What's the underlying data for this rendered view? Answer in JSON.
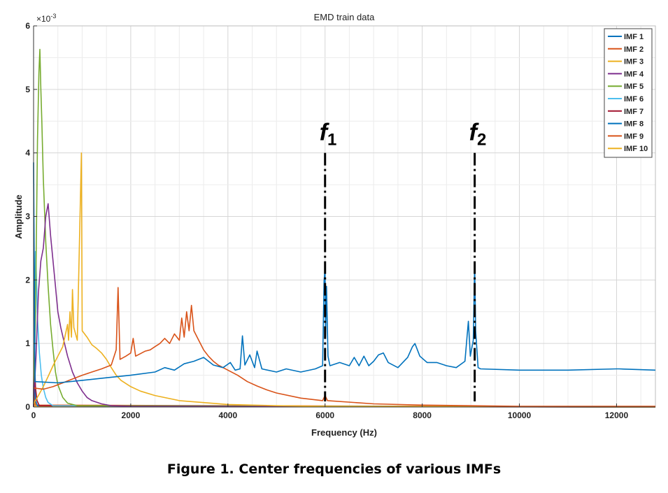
{
  "chart_data": {
    "type": "line",
    "title": "EMD train data",
    "xlabel": "Frequency (Hz)",
    "ylabel": "Amplitude",
    "y_multiplier": "×10",
    "y_exponent": "-3",
    "xlim": [
      0,
      12800
    ],
    "ylim": [
      0,
      6
    ],
    "x_ticks": [
      "0",
      "2000",
      "4000",
      "6000",
      "8000",
      "10000",
      "12000"
    ],
    "x_tick_values": [
      0,
      2000,
      4000,
      6000,
      8000,
      10000,
      12000
    ],
    "y_ticks": [
      "0",
      "1",
      "2",
      "3",
      "4",
      "5",
      "6"
    ],
    "y_tick_values": [
      0,
      1,
      2,
      3,
      4,
      5,
      6
    ],
    "grid": "on",
    "legend_position": "top-right",
    "series": [
      {
        "name": "IMF 1",
        "color": "#0072BD",
        "points": [
          [
            0,
            3.85
          ],
          [
            30,
            0.4
          ],
          [
            500,
            0.38
          ],
          [
            1000,
            0.42
          ],
          [
            1500,
            0.46
          ],
          [
            2000,
            0.5
          ],
          [
            2500,
            0.55
          ],
          [
            2700,
            0.62
          ],
          [
            2900,
            0.58
          ],
          [
            3100,
            0.68
          ],
          [
            3300,
            0.72
          ],
          [
            3500,
            0.78
          ],
          [
            3700,
            0.66
          ],
          [
            3900,
            0.62
          ],
          [
            4050,
            0.7
          ],
          [
            4150,
            0.58
          ],
          [
            4250,
            0.6
          ],
          [
            4300,
            1.12
          ],
          [
            4350,
            0.66
          ],
          [
            4450,
            0.82
          ],
          [
            4550,
            0.62
          ],
          [
            4600,
            0.88
          ],
          [
            4700,
            0.6
          ],
          [
            5000,
            0.55
          ],
          [
            5200,
            0.6
          ],
          [
            5500,
            0.55
          ],
          [
            5800,
            0.6
          ],
          [
            5950,
            0.65
          ],
          [
            5980,
            1.98
          ],
          [
            6000,
            2.18
          ],
          [
            6010,
            1.1
          ],
          [
            6030,
            1.9
          ],
          [
            6060,
            0.8
          ],
          [
            6100,
            0.65
          ],
          [
            6300,
            0.7
          ],
          [
            6500,
            0.65
          ],
          [
            6600,
            0.78
          ],
          [
            6700,
            0.65
          ],
          [
            6800,
            0.8
          ],
          [
            6900,
            0.65
          ],
          [
            7000,
            0.72
          ],
          [
            7100,
            0.82
          ],
          [
            7200,
            0.85
          ],
          [
            7300,
            0.7
          ],
          [
            7500,
            0.62
          ],
          [
            7700,
            0.78
          ],
          [
            7800,
            0.95
          ],
          [
            7850,
            1.0
          ],
          [
            7950,
            0.8
          ],
          [
            8100,
            0.7
          ],
          [
            8300,
            0.7
          ],
          [
            8500,
            0.65
          ],
          [
            8700,
            0.62
          ],
          [
            8880,
            0.72
          ],
          [
            8950,
            1.35
          ],
          [
            8990,
            0.8
          ],
          [
            9050,
            1.05
          ],
          [
            9080,
            2.25
          ],
          [
            9100,
            1.2
          ],
          [
            9150,
            0.62
          ],
          [
            9200,
            0.6
          ],
          [
            10000,
            0.58
          ],
          [
            11000,
            0.58
          ],
          [
            12000,
            0.6
          ],
          [
            12050,
            0.6
          ],
          [
            12800,
            0.58
          ]
        ]
      },
      {
        "name": "IMF 2",
        "color": "#D95319",
        "points": [
          [
            0,
            0.3
          ],
          [
            200,
            0.28
          ],
          [
            400,
            0.32
          ],
          [
            600,
            0.38
          ],
          [
            800,
            0.44
          ],
          [
            1000,
            0.5
          ],
          [
            1200,
            0.55
          ],
          [
            1400,
            0.6
          ],
          [
            1600,
            0.66
          ],
          [
            1700,
            0.9
          ],
          [
            1740,
            1.88
          ],
          [
            1780,
            0.75
          ],
          [
            1900,
            0.8
          ],
          [
            2000,
            0.85
          ],
          [
            2050,
            1.08
          ],
          [
            2100,
            0.8
          ],
          [
            2300,
            0.88
          ],
          [
            2400,
            0.9
          ],
          [
            2500,
            0.95
          ],
          [
            2600,
            1.0
          ],
          [
            2700,
            1.08
          ],
          [
            2800,
            1.0
          ],
          [
            2900,
            1.15
          ],
          [
            3000,
            1.05
          ],
          [
            3050,
            1.4
          ],
          [
            3100,
            1.1
          ],
          [
            3150,
            1.5
          ],
          [
            3200,
            1.2
          ],
          [
            3250,
            1.6
          ],
          [
            3300,
            1.2
          ],
          [
            3400,
            1.05
          ],
          [
            3500,
            0.9
          ],
          [
            3600,
            0.8
          ],
          [
            3700,
            0.72
          ],
          [
            3800,
            0.66
          ],
          [
            4000,
            0.58
          ],
          [
            4200,
            0.5
          ],
          [
            4400,
            0.4
          ],
          [
            4600,
            0.33
          ],
          [
            4800,
            0.27
          ],
          [
            5000,
            0.22
          ],
          [
            5500,
            0.14
          ],
          [
            5950,
            0.1
          ],
          [
            6000,
            0.18
          ],
          [
            6050,
            0.1
          ],
          [
            7000,
            0.05
          ],
          [
            8000,
            0.03
          ],
          [
            9000,
            0.02
          ],
          [
            10000,
            0.01
          ],
          [
            12800,
            0.01
          ]
        ]
      },
      {
        "name": "IMF 3",
        "color": "#EDB120",
        "points": [
          [
            0,
            0.05
          ],
          [
            100,
            0.18
          ],
          [
            200,
            0.32
          ],
          [
            300,
            0.48
          ],
          [
            400,
            0.65
          ],
          [
            500,
            0.8
          ],
          [
            600,
            0.95
          ],
          [
            700,
            1.3
          ],
          [
            720,
            1.05
          ],
          [
            750,
            1.5
          ],
          [
            780,
            1.1
          ],
          [
            800,
            1.85
          ],
          [
            830,
            1.25
          ],
          [
            900,
            1.05
          ],
          [
            985,
            4.0
          ],
          [
            1000,
            1.2
          ],
          [
            1100,
            1.1
          ],
          [
            1200,
            0.98
          ],
          [
            1300,
            0.92
          ],
          [
            1400,
            0.85
          ],
          [
            1500,
            0.75
          ],
          [
            1600,
            0.62
          ],
          [
            1700,
            0.5
          ],
          [
            1800,
            0.42
          ],
          [
            2000,
            0.32
          ],
          [
            2200,
            0.25
          ],
          [
            2500,
            0.18
          ],
          [
            3000,
            0.1
          ],
          [
            4000,
            0.04
          ],
          [
            5000,
            0.02
          ],
          [
            6000,
            0.01
          ],
          [
            12800,
            0.0
          ]
        ]
      },
      {
        "name": "IMF 4",
        "color": "#7E2F8E",
        "points": [
          [
            0,
            0.05
          ],
          [
            50,
            0.8
          ],
          [
            100,
            1.8
          ],
          [
            150,
            2.3
          ],
          [
            200,
            2.5
          ],
          [
            250,
            3.0
          ],
          [
            300,
            3.2
          ],
          [
            350,
            2.7
          ],
          [
            400,
            2.3
          ],
          [
            450,
            1.9
          ],
          [
            500,
            1.5
          ],
          [
            560,
            1.25
          ],
          [
            620,
            1.05
          ],
          [
            700,
            0.8
          ],
          [
            800,
            0.55
          ],
          [
            900,
            0.38
          ],
          [
            1000,
            0.25
          ],
          [
            1100,
            0.15
          ],
          [
            1200,
            0.1
          ],
          [
            1400,
            0.05
          ],
          [
            1600,
            0.02
          ],
          [
            2000,
            0.01
          ],
          [
            12800,
            0.0
          ]
        ]
      },
      {
        "name": "IMF 5",
        "color": "#77AC30",
        "points": [
          [
            0,
            0.05
          ],
          [
            40,
            1.5
          ],
          [
            80,
            4.2
          ],
          [
            110,
            5.25
          ],
          [
            130,
            5.63
          ],
          [
            150,
            5.0
          ],
          [
            170,
            4.5
          ],
          [
            200,
            3.6
          ],
          [
            250,
            2.6
          ],
          [
            300,
            1.9
          ],
          [
            350,
            1.3
          ],
          [
            400,
            0.9
          ],
          [
            450,
            0.55
          ],
          [
            500,
            0.35
          ],
          [
            600,
            0.15
          ],
          [
            700,
            0.06
          ],
          [
            900,
            0.02
          ],
          [
            12800,
            0.0
          ]
        ]
      },
      {
        "name": "IMF 6",
        "color": "#4DBEEE",
        "points": [
          [
            0,
            0.05
          ],
          [
            20,
            1.7
          ],
          [
            40,
            2.45
          ],
          [
            60,
            2.0
          ],
          [
            80,
            1.4
          ],
          [
            120,
            0.85
          ],
          [
            160,
            0.5
          ],
          [
            200,
            0.3
          ],
          [
            250,
            0.15
          ],
          [
            300,
            0.07
          ],
          [
            400,
            0.02
          ],
          [
            12800,
            0.0
          ]
        ]
      },
      {
        "name": "IMF 7",
        "color": "#A2142F",
        "points": [
          [
            0,
            0.0
          ],
          [
            10,
            1.2
          ],
          [
            20,
            0.7
          ],
          [
            40,
            0.3
          ],
          [
            70,
            0.1
          ],
          [
            120,
            0.02
          ],
          [
            12800,
            0.0
          ]
        ]
      },
      {
        "name": "IMF 8",
        "color": "#0072BD",
        "points": [
          [
            0,
            0.0
          ],
          [
            8,
            0.9
          ],
          [
            20,
            0.4
          ],
          [
            40,
            0.1
          ],
          [
            80,
            0.02
          ],
          [
            12800,
            0.0
          ]
        ]
      },
      {
        "name": "IMF 9",
        "color": "#D95319",
        "points": [
          [
            0,
            0.0
          ],
          [
            5,
            0.6
          ],
          [
            15,
            0.2
          ],
          [
            40,
            0.03
          ],
          [
            12800,
            0.0
          ]
        ]
      },
      {
        "name": "IMF 10",
        "color": "#EDB120",
        "points": [
          [
            0,
            0.0
          ],
          [
            4,
            0.4
          ],
          [
            12,
            0.1
          ],
          [
            30,
            0.01
          ],
          [
            12800,
            0.0
          ]
        ]
      }
    ],
    "annotations": [
      {
        "label": "f",
        "subscript": "1",
        "x": 6000,
        "y_top": 4.0
      },
      {
        "label": "f",
        "subscript": "2",
        "x": 9080,
        "y_top": 4.0
      }
    ]
  },
  "caption": "Figure 1. Center frequencies of various IMFs"
}
